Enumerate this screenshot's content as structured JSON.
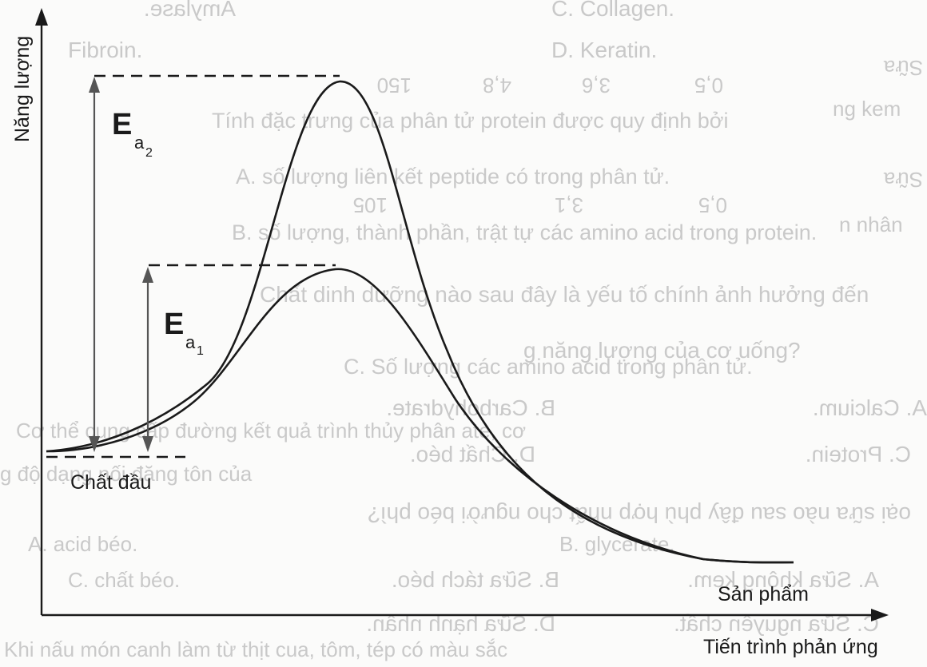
{
  "diagram": {
    "y_axis_label": "Năng lượng",
    "x_axis_label": "Tiến trình phản ứng",
    "reactant_label": "Chất đầu",
    "product_label": "Sản phẩm",
    "ea2_label": {
      "main": "E",
      "sub": "a",
      "subsub": "2"
    },
    "ea1_label": {
      "main": "E",
      "sub": "a",
      "subsub": "1"
    },
    "colors": {
      "curve": "#1a1a1a",
      "arrow": "#555555",
      "dash": "#1a1a1a",
      "axis": "#1a1a1a",
      "background_text": "#c9c9c9"
    }
  },
  "background_text": [
    "Amylase.",
    "C. Collagen.",
    "Fibroin.",
    "D. Keratin.",
    "150",
    "4,8",
    "3,6",
    "0,5",
    "Sữa",
    "ng kem",
    "Tính đặc trưng của phân tử protein được quy định bởi",
    "A. số lượng liên kết peptide có trong phân tử.",
    "105",
    "3,1",
    "0,5",
    "Sữa",
    "n nhân",
    "B. số lượng, thành phần, trật tự các amino acid trong protein.",
    "Chất dinh dưỡng nào sau đây là yếu tố chính ảnh hưởng đến",
    "g năng lượng của cơ uống?",
    "C. Số lượng các amino acid trong phân tử.",
    "A. Calcium.",
    "B. Carbohydrate.",
    "C. Protein.",
    "D. Chất béo.",
    "Cơ thể cung cấp đường kết quả trình thủy phân ate, cơ",
    "g độ dạng nối đăng tôn của",
    "oại sữa nào sau đây phù hợp nhất cho người béo phì?",
    "A. acid béo.",
    "B. glycerate.",
    "A. Sữa không kem.",
    "B. Sữa tách béo.",
    "C. chất béo.",
    "C. Sữa nguyên chất.",
    "D. Sữa hạnh nhân.",
    "Khi nấu món canh làm từ thịt cua, tôm, tép có màu sắc"
  ]
}
